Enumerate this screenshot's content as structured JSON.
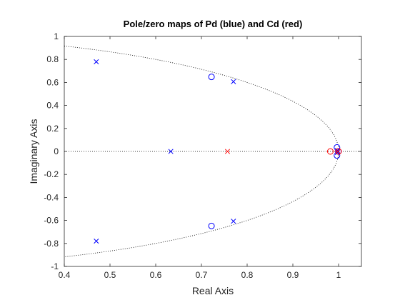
{
  "chart_data": {
    "type": "scatter",
    "title": "Pole/zero maps of Pd (blue) and Cd (red)",
    "xlabel": "Real Axis",
    "ylabel": "Imaginary Axis",
    "xlim": [
      0.4,
      1.05
    ],
    "ylim": [
      -1,
      1
    ],
    "x_ticks": [
      0.4,
      0.5,
      0.6,
      0.7,
      0.8,
      0.9,
      1
    ],
    "y_ticks": [
      -1,
      -0.8,
      -0.6,
      -0.4,
      -0.2,
      0,
      0.2,
      0.4,
      0.6,
      0.8,
      1
    ],
    "x_tick_labels": [
      "0.4",
      "0.5",
      "0.6",
      "0.7",
      "0.8",
      "0.9",
      "1"
    ],
    "y_tick_labels": [
      "-1",
      "-0.8",
      "-0.6",
      "-0.4",
      "-0.2",
      "0",
      "0.2",
      "0.4",
      "0.6",
      "0.8",
      "1"
    ],
    "grid": false,
    "reference_lines": {
      "unit_circle": true,
      "real_axis": true,
      "style": "dotted",
      "color": "#000000"
    },
    "series": [
      {
        "marker": "x",
        "color": "#0000ff",
        "points": [
          {
            "x": 0.47,
            "y": 0.78
          },
          {
            "x": 0.47,
            "y": -0.78
          },
          {
            "x": 0.633,
            "y": 0.0
          },
          {
            "x": 0.77,
            "y": 0.607
          },
          {
            "x": 0.77,
            "y": -0.607
          },
          {
            "x": 0.9975,
            "y": 0.01
          },
          {
            "x": 0.9975,
            "y": -0.01
          }
        ]
      },
      {
        "marker": "o",
        "color": "#0000ff",
        "points": [
          {
            "x": 0.722,
            "y": 0.648
          },
          {
            "x": 0.722,
            "y": -0.648
          },
          {
            "x": 0.9965,
            "y": 0.035
          },
          {
            "x": 0.9965,
            "y": -0.035
          },
          {
            "x": 0.9995,
            "y": 0.0
          }
        ]
      },
      {
        "marker": "x",
        "color": "#ff0000",
        "points": [
          {
            "x": 0.757,
            "y": 0.0
          },
          {
            "x": 0.9985,
            "y": 0.0
          }
        ]
      },
      {
        "marker": "o",
        "color": "#ff0000",
        "points": [
          {
            "x": 0.982,
            "y": 0.0
          },
          {
            "x": 1.0,
            "y": 0.0
          }
        ]
      }
    ]
  }
}
